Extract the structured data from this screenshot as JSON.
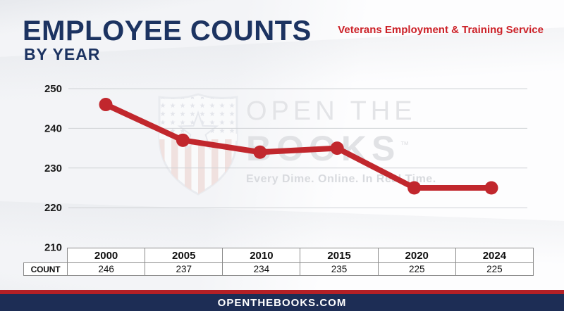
{
  "header": {
    "title": "EMPLOYEE COUNTS",
    "subtitle": "BY YEAR",
    "org_label": "Veterans Employment & Training Service"
  },
  "watermark": {
    "logo_name": "openthebooks-shield-logo",
    "text_line1": "OPEN THE",
    "text_line2": "BOOKS",
    "trademark": "™",
    "tagline": "Every Dime. Online. In Real Time."
  },
  "footer": {
    "url_label": "OPENTHEBOOKS.COM"
  },
  "colors": {
    "navy": "#1c3361",
    "red": "#c1272d",
    "footer_bar": "#1d2d55",
    "footer_stripe": "#b32026",
    "gridline": "#cfd2d5",
    "table_border": "#8b8b8b",
    "axis_label": "#191919",
    "watermark_text": "#e2e3e6",
    "watermark_tagline": "#d8dade"
  },
  "chart_data": {
    "type": "line",
    "title": "EMPLOYEE COUNTS BY YEAR",
    "categories": [
      "2000",
      "2005",
      "2010",
      "2015",
      "2020",
      "2024"
    ],
    "series": [
      {
        "name": "COUNT",
        "values": [
          246,
          237,
          234,
          235,
          225,
          225
        ]
      }
    ],
    "yticks": [
      250,
      240,
      230,
      220,
      210
    ],
    "ylim": [
      210,
      250
    ],
    "grid": true,
    "legend": false,
    "line_color": "#c1272d",
    "marker": "circle"
  }
}
